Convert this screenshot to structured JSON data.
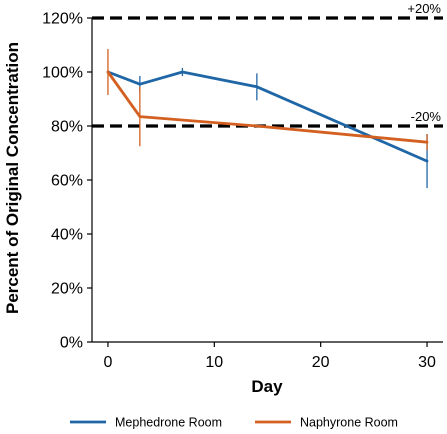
{
  "chart_data": {
    "type": "line",
    "xlabel": "Day",
    "ylabel": "Percent of Original Concentration",
    "xlim": [
      -1.5,
      31.5
    ],
    "ylim": [
      0,
      120
    ],
    "x_ticks": [
      0,
      10,
      20,
      30
    ],
    "y_ticks": [
      0,
      20,
      40,
      60,
      80,
      100,
      120
    ],
    "y_tick_labels": [
      "0%",
      "20%",
      "40%",
      "60%",
      "80%",
      "100%",
      "120%"
    ],
    "reference_lines": [
      {
        "y": 120,
        "label": "+20%",
        "style": "dashed"
      },
      {
        "y": 80,
        "label": "-20%",
        "style": "dashed"
      }
    ],
    "series": [
      {
        "name": "Mephedrone Room",
        "color": "#1F66A6",
        "x": [
          0,
          3,
          7,
          14,
          30
        ],
        "y": [
          100,
          95.5,
          100,
          94.5,
          67
        ],
        "error": [
          0,
          3,
          1.5,
          5,
          10
        ]
      },
      {
        "name": "Naphyrone Room",
        "color": "#D35F20",
        "x": [
          0,
          3,
          14,
          30
        ],
        "y": [
          100,
          83.5,
          80,
          74
        ],
        "error": [
          8.5,
          11,
          0,
          3
        ]
      }
    ],
    "legend_position": "bottom",
    "grid": false
  }
}
